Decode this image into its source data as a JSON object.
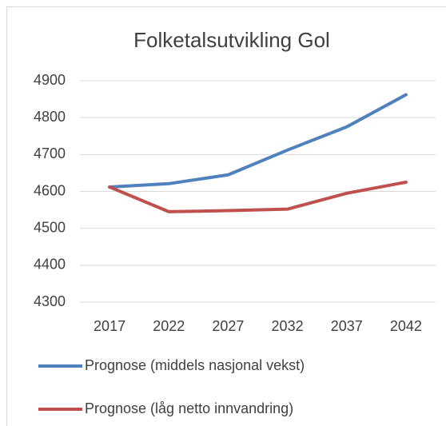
{
  "chart_data": {
    "type": "line",
    "title": "Folketalsutvikling Gol",
    "categories": [
      "2017",
      "2022",
      "2027",
      "2032",
      "2037",
      "2042"
    ],
    "series": [
      {
        "name": "Prognose (middels nasjonal vekst)",
        "color": "#4f81bd",
        "values": [
          4612,
          4621,
          4645,
          4712,
          4775,
          4862
        ]
      },
      {
        "name": "Prognose (låg netto innvandring)",
        "color": "#c0504d",
        "values": [
          4612,
          4545,
          4548,
          4552,
          4595,
          4625
        ]
      }
    ],
    "ylim": [
      4300,
      4900
    ],
    "yticks": [
      4300,
      4400,
      4500,
      4600,
      4700,
      4800,
      4900
    ],
    "grid": true,
    "legend": "bottom"
  }
}
